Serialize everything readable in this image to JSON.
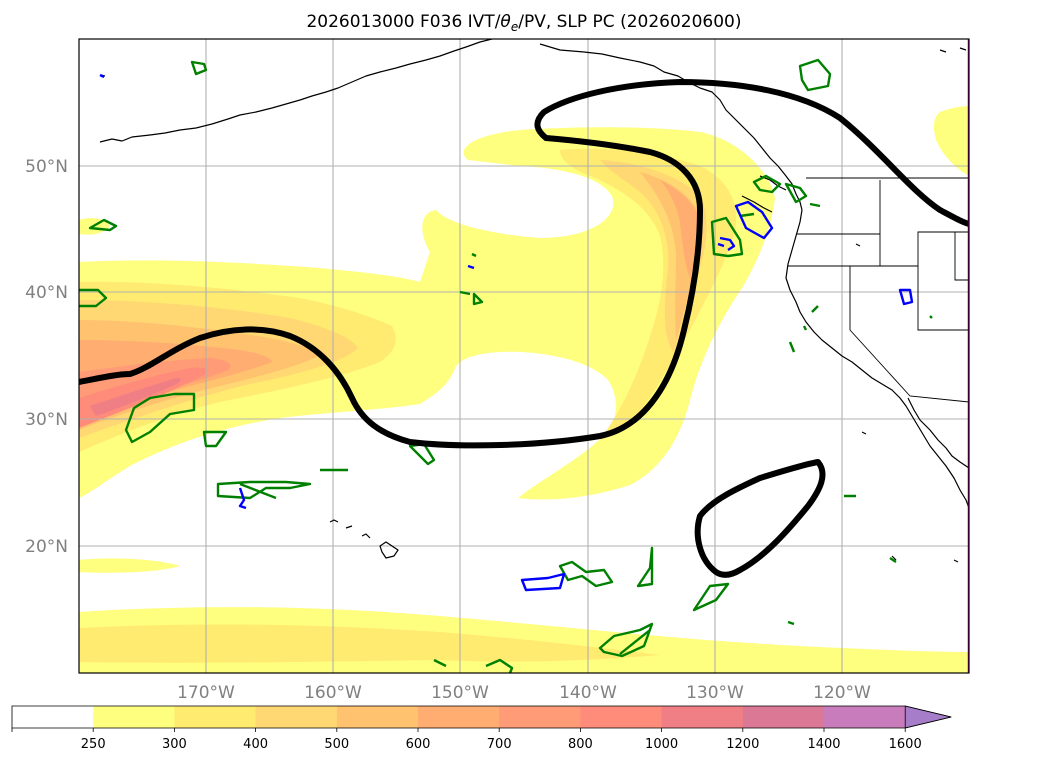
{
  "map": {
    "title_prefix": "2026013000 F036 IVT/",
    "title_theta": "θ",
    "title_sub": "e",
    "title_suffix": "/PV, SLP PC (2026020600)",
    "lat_labels": [
      "50°N",
      "40°N",
      "30°N",
      "20°N"
    ],
    "lon_labels": [
      "170°W",
      "160°W",
      "150°W",
      "140°W",
      "130°W",
      "120°W"
    ],
    "extent": {
      "lon_min": -180,
      "lon_max": -110,
      "lat_min": 10,
      "lat_max": 60
    },
    "gridlines": {
      "lons": [
        -170,
        -160,
        -150,
        -140,
        -130,
        -120
      ],
      "lats": [
        50,
        40,
        30,
        20
      ]
    },
    "colors": {
      "grid": "#b0b0b0",
      "slp_contour": "#000000",
      "green_contour": "#008000",
      "blue_contour": "#0000ff",
      "coastline": "#000000"
    }
  },
  "colorbar": {
    "levels": [
      "250",
      "300",
      "400",
      "500",
      "600",
      "700",
      "800",
      "1000",
      "1200",
      "1400",
      "1600"
    ],
    "colors": [
      "#ffffff",
      "#ffff7f",
      "#ffeb70",
      "#ffd873",
      "#ffc26f",
      "#ffad70",
      "#ff9b76",
      "#ff8c7a",
      "#ef7f85",
      "#db7896",
      "#c87cbb",
      "#a67dc9"
    ],
    "extend": "max"
  }
}
